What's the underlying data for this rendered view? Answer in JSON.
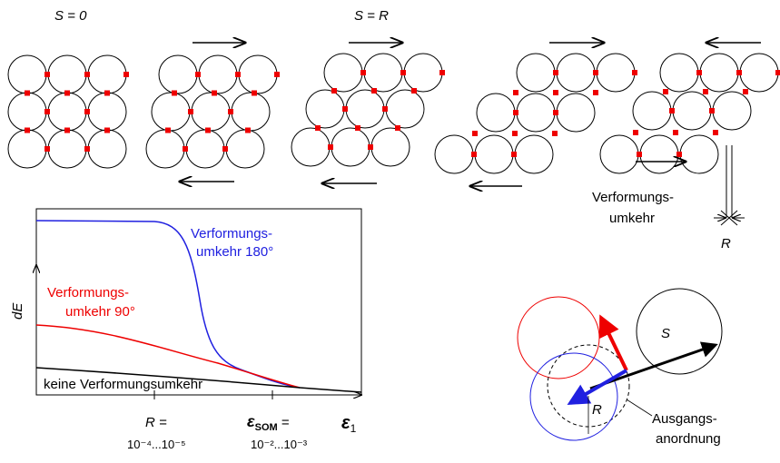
{
  "top": {
    "s0": "S = 0",
    "sr": "S = R",
    "reversal": [
      "Verformungs-",
      "umkehr"
    ],
    "r": "R"
  },
  "graph": {
    "curve_blue": [
      "Verformungs-",
      "umkehr 180°"
    ],
    "curve_red": [
      "Verformungs-",
      "umkehr 90°"
    ],
    "curve_black": "keine Verformungsumkehr",
    "y_label": "dE",
    "x_labels": [
      {
        "lines": [
          "R =",
          "10⁻⁴...10⁻⁵"
        ]
      },
      {
        "symbol": "ε",
        "subscript": "SOM",
        "suffix": " =",
        "range": "10⁻²...10⁻³"
      },
      {
        "symbol": "ε",
        "subscript": "1"
      }
    ]
  },
  "geometry": {
    "s": "S",
    "r": "R",
    "initial": [
      "Ausgangs-",
      "anordnung"
    ]
  }
}
